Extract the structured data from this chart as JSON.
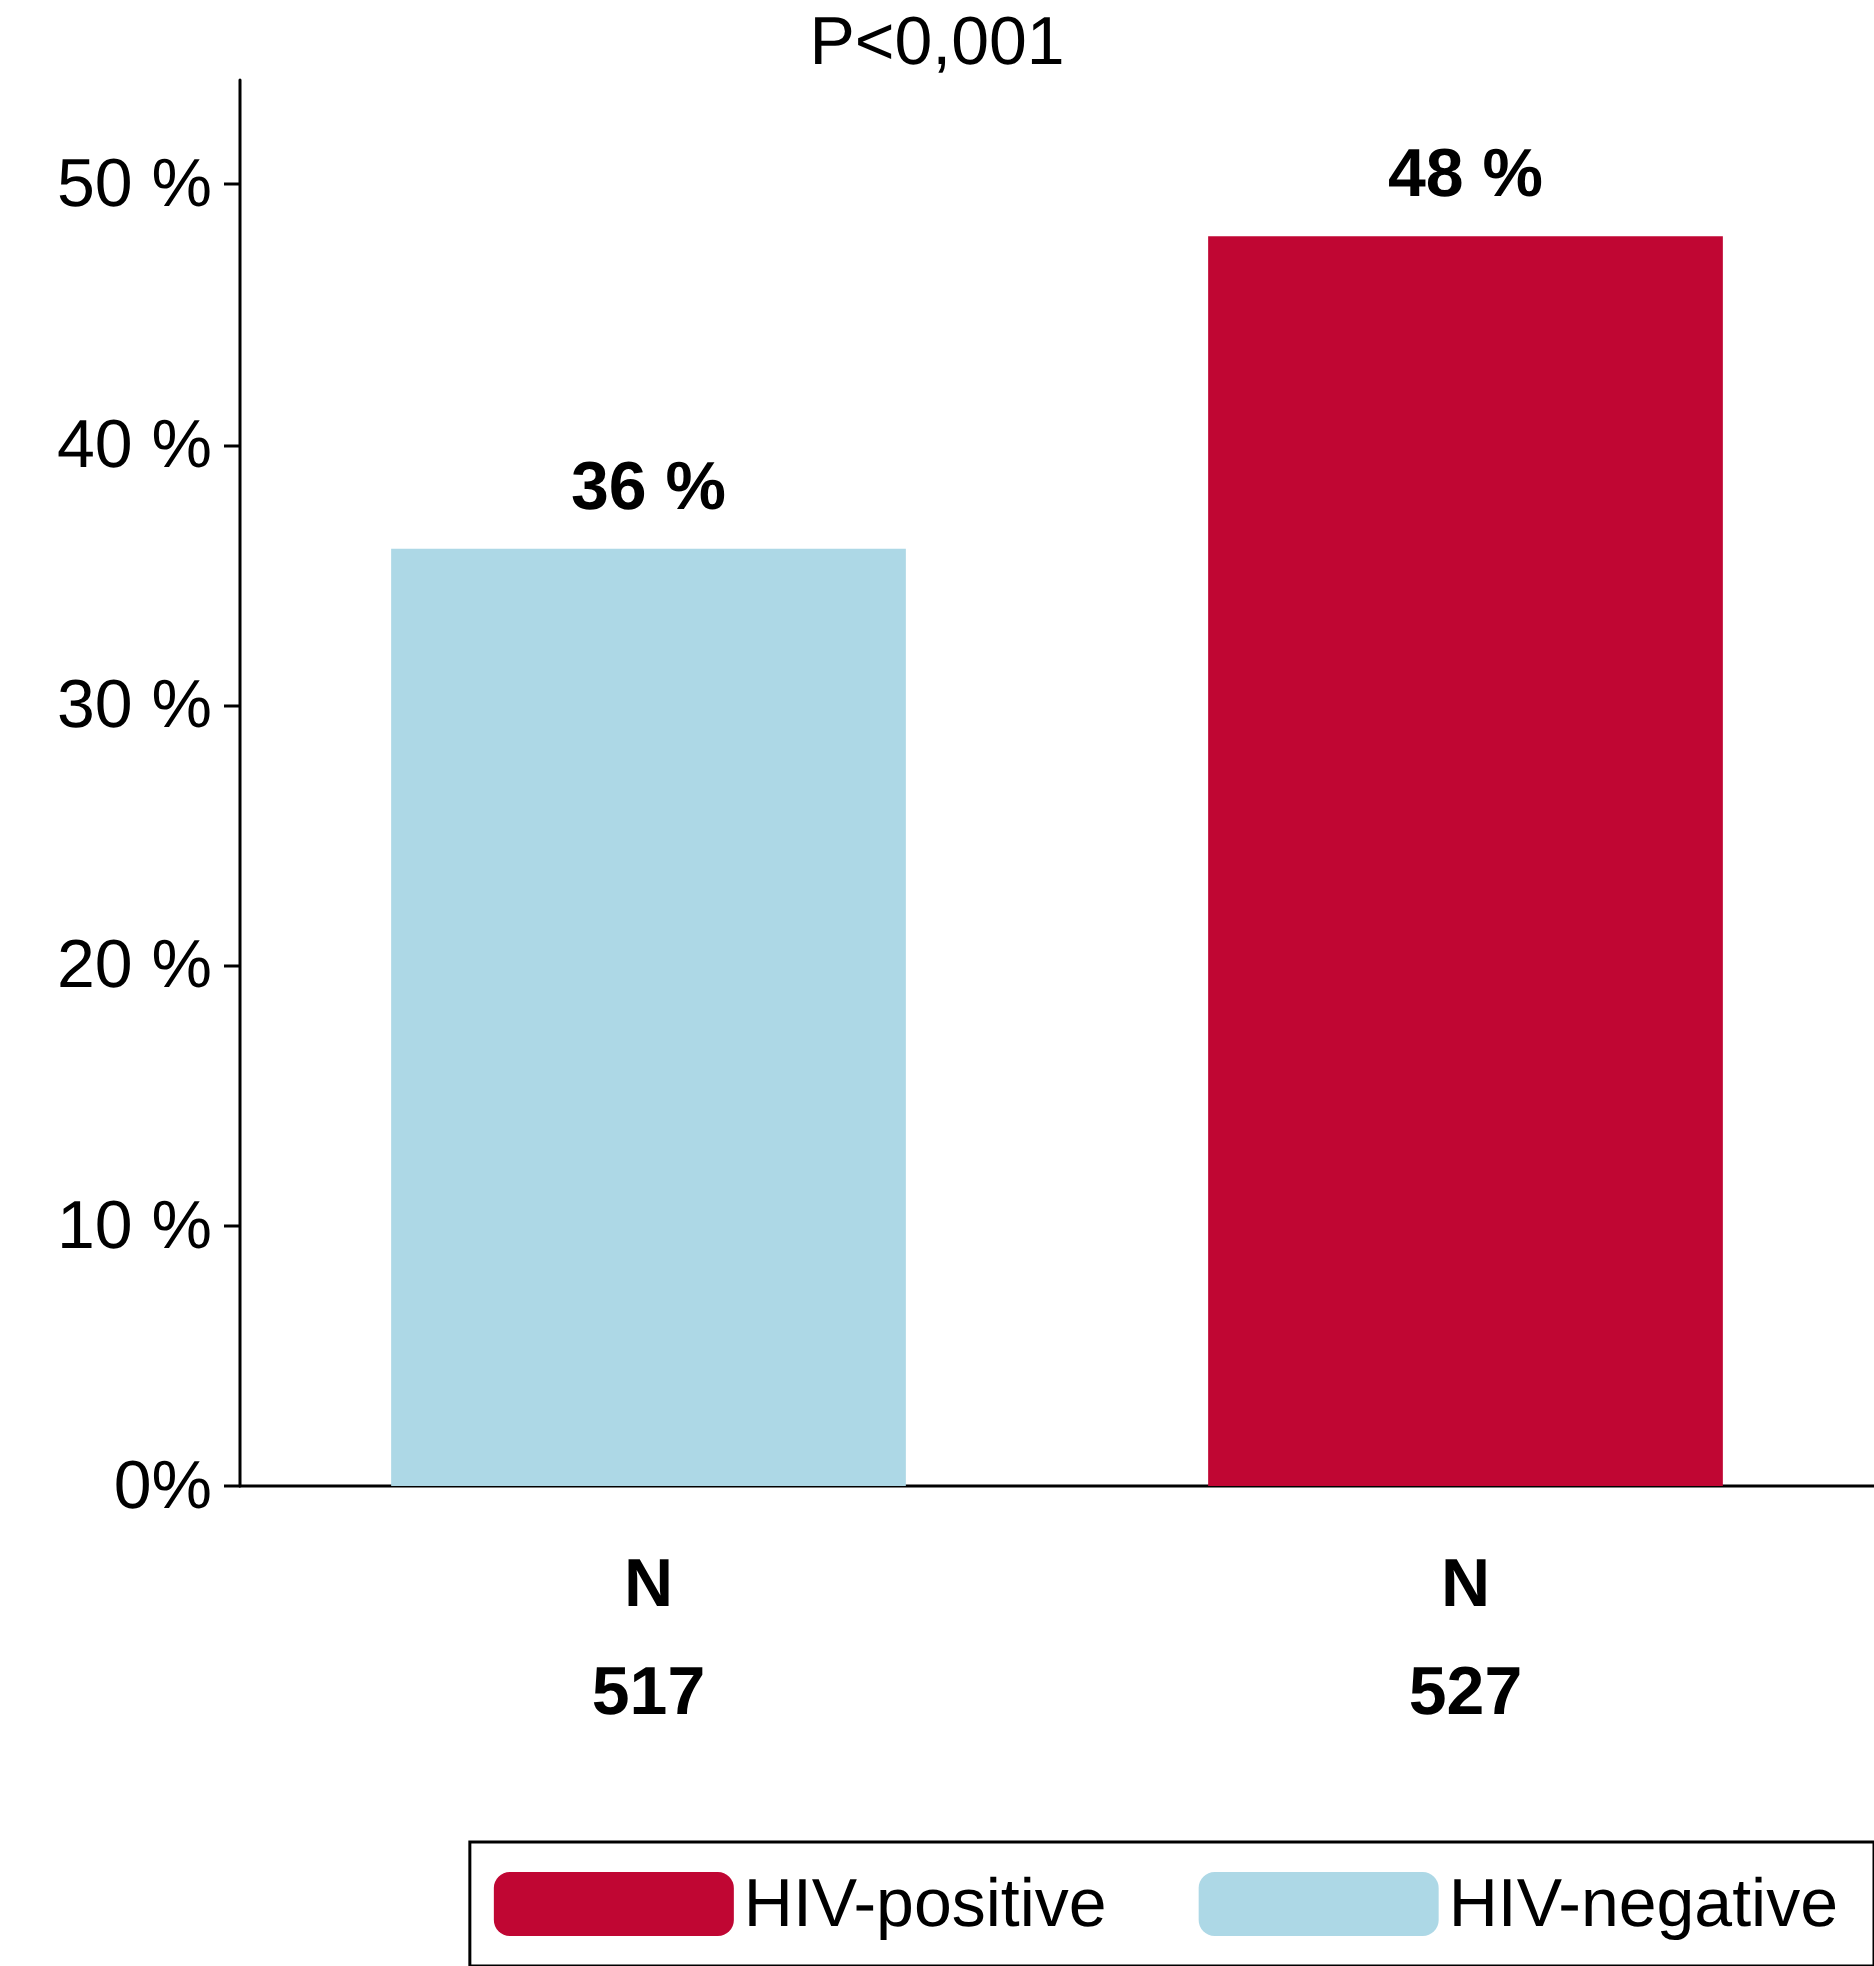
{
  "chart_data": {
    "type": "bar",
    "categories": [
      "N\n517",
      "N\n527"
    ],
    "series": [
      {
        "name": "HIV-positive",
        "color": "#c00633",
        "values": [
          null,
          48
        ],
        "value_labels": [
          null,
          "48 %"
        ]
      },
      {
        "name": "HIV-negative",
        "color": "#add8e6",
        "values": [
          36,
          null
        ],
        "value_labels": [
          "36 %",
          null
        ]
      }
    ],
    "stacked": true,
    "ylim": [
      0,
      54
    ],
    "yticks": [
      {
        "value": 0,
        "label": "0%"
      },
      {
        "value": 10,
        "label": "10 %"
      },
      {
        "value": 20,
        "label": "20 %"
      },
      {
        "value": 30,
        "label": "30 %"
      },
      {
        "value": 40,
        "label": "40 %"
      },
      {
        "value": 50,
        "label": "50 %"
      }
    ],
    "grid": false,
    "legend": "bottom",
    "annotations": [
      "P<0,001"
    ]
  }
}
